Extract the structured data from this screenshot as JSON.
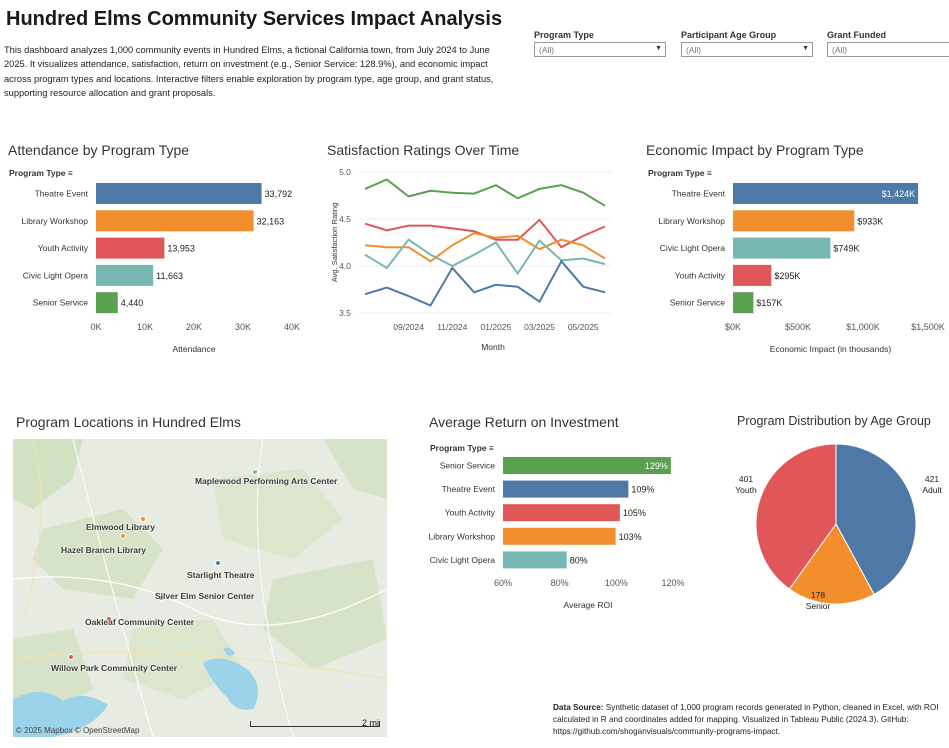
{
  "header": {
    "title": "Hundred Elms Community Services Impact Analysis",
    "description": "This dashboard analyzes 1,000 community events in Hundred Elms, a fictional California town, from July 2024 to June 2025. It visualizes attendance, satisfaction, return on investment (e.g., Senior Service: 128.9%), and economic impact across program types and locations. Interactive filters enable exploration by program type, age group, and grant status, supporting resource allocation and grant proposals."
  },
  "filters": [
    {
      "label": "Program Type",
      "value": "(All)"
    },
    {
      "label": "Participant Age Group",
      "value": "(All)"
    },
    {
      "label": "Grant Funded",
      "value": "(All)"
    }
  ],
  "colors": {
    "Theatre Event": "#4e79a7",
    "Library Workshop": "#f28e2b",
    "Youth Activity": "#e15759",
    "Civic Light Opera": "#76b7b2",
    "Senior Service": "#59a14f"
  },
  "attendance": {
    "title": "Attendance by Program Type",
    "field_label": "Program Type",
    "axis_title": "Attendance",
    "ticks": [
      "0K",
      "10K",
      "20K",
      "30K",
      "40K"
    ],
    "chart_data": {
      "type": "bar",
      "orientation": "horizontal",
      "categories": [
        "Theatre Event",
        "Library Workshop",
        "Youth Activity",
        "Civic Light Opera",
        "Senior Service"
      ],
      "values": [
        33792,
        32163,
        13953,
        11663,
        4440
      ],
      "labels": [
        "33,792",
        "32,163",
        "13,953",
        "11,663",
        "4,440"
      ],
      "xlim": [
        0,
        40000
      ]
    }
  },
  "satisfaction": {
    "title": "Satisfaction Ratings Over Time",
    "axis_title_x": "Month",
    "axis_title_y": "Avg. Satisfaction Rating",
    "y_ticks": [
      "5.0",
      "4.5",
      "4.0",
      "3.5"
    ],
    "x_ticks": [
      "09/2024",
      "11/2024",
      "01/2025",
      "03/2025",
      "05/2025"
    ],
    "chart_data": {
      "type": "line",
      "x": [
        "07/2024",
        "08/2024",
        "09/2024",
        "10/2024",
        "11/2024",
        "12/2024",
        "01/2025",
        "02/2025",
        "03/2025",
        "04/2025",
        "05/2025",
        "06/2025"
      ],
      "ylim": [
        3.5,
        5.0
      ],
      "series": [
        {
          "key": "Senior Service",
          "values": [
            4.82,
            4.92,
            4.74,
            4.8,
            4.78,
            4.77,
            4.86,
            4.72,
            4.82,
            4.86,
            4.78,
            4.64
          ]
        },
        {
          "key": "Youth Activity",
          "values": [
            4.45,
            4.38,
            4.43,
            4.43,
            4.4,
            4.37,
            4.28,
            4.28,
            4.49,
            4.2,
            4.32,
            4.42
          ]
        },
        {
          "key": "Library Workshop",
          "values": [
            4.22,
            4.2,
            4.2,
            4.05,
            4.22,
            4.35,
            4.3,
            4.32,
            4.18,
            4.28,
            4.22,
            4.08
          ]
        },
        {
          "key": "Civic Light Opera",
          "values": [
            4.12,
            3.98,
            4.28,
            4.12,
            4.0,
            4.12,
            4.25,
            3.92,
            4.27,
            4.06,
            4.08,
            4.02
          ]
        },
        {
          "key": "Theatre Event",
          "values": [
            3.7,
            3.77,
            3.68,
            3.58,
            3.98,
            3.72,
            3.8,
            3.78,
            3.62,
            4.05,
            3.78,
            3.72
          ]
        }
      ]
    }
  },
  "economic": {
    "title": "Economic Impact by Program Type",
    "field_label": "Program Type",
    "axis_title": "Economic Impact (in thousands)",
    "ticks": [
      "$0K",
      "$500K",
      "$1,000K",
      "$1,500K"
    ],
    "chart_data": {
      "type": "bar",
      "orientation": "horizontal",
      "categories": [
        "Theatre Event",
        "Library Workshop",
        "Civic Light Opera",
        "Youth Activity",
        "Senior Service"
      ],
      "values": [
        1424,
        933,
        749,
        295,
        157
      ],
      "labels": [
        "$1,424K",
        "$933K",
        "$749K",
        "$295K",
        "$157K"
      ],
      "xlim": [
        0,
        1500
      ]
    }
  },
  "map": {
    "title": "Program Locations in Hundred Elms",
    "attribution": "© 2025 Mapbox  © OpenStreetMap",
    "scale_label": "2 mi",
    "locations": [
      {
        "name": "Maplewood Performing Arts Center",
        "type": "Civic Light Opera"
      },
      {
        "name": "Elmwood Library",
        "type": "Library Workshop"
      },
      {
        "name": "Hazel Branch Library",
        "type": "Library Workshop"
      },
      {
        "name": "Starlight Theatre",
        "type": "Theatre Event"
      },
      {
        "name": "Silver Elm Senior Center",
        "type": "Senior Service"
      },
      {
        "name": "Oakleaf Community Center",
        "type": "Youth Activity"
      },
      {
        "name": "Willow Park Community Center",
        "type": "Youth Activity"
      }
    ]
  },
  "roi": {
    "title": "Average Return on Investment",
    "field_label": "Program Type",
    "axis_title": "Average ROI",
    "ticks": [
      "60%",
      "80%",
      "100%",
      "120%"
    ],
    "chart_data": {
      "type": "bar",
      "orientation": "horizontal",
      "categories": [
        "Senior Service",
        "Theatre Event",
        "Youth Activity",
        "Library Workshop",
        "Civic Light Opera"
      ],
      "values": [
        129,
        109,
        105,
        103,
        80
      ],
      "labels": [
        "129%",
        "109%",
        "105%",
        "103%",
        "80%"
      ],
      "xlim": [
        50,
        130
      ]
    }
  },
  "age": {
    "title": "Program Distribution by Age Group",
    "chart_data": {
      "type": "pie",
      "categories": [
        "Adult",
        "Senior",
        "Youth"
      ],
      "values": [
        421,
        178,
        401
      ],
      "colors": [
        "#4e79a7",
        "#f28e2b",
        "#e15759"
      ]
    }
  },
  "source": {
    "label": "Data Source:",
    "text": "Synthetic dataset of 1,000 program records generated in Python, cleaned in Excel, with ROI calculated in R and coordinates added for mapping. Visualized in Tableau Public (2024.3). GitHub: https://github.com/shoganvisuals/community-programs-impact."
  }
}
